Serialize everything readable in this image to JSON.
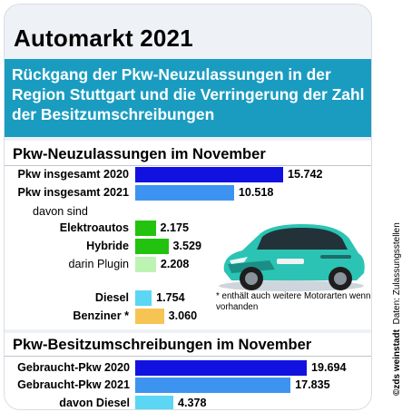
{
  "title": "Automarkt 2021",
  "subtitle": "Rückgang der Pkw-Neuzulassungen in der Region Stuttgart und die Verringerung der Zahl der Besitzumschreibungen",
  "footnote": "* enthält auch weitere Motorarten wenn vorhanden",
  "credit": "©zds weinstadt",
  "source": "Daten: Zulassungsstellen",
  "colors": {
    "dark_blue": "#1212e0",
    "mid_blue": "#3d94f0",
    "green": "#22c20f",
    "light_green": "#bdf4b4",
    "cyan": "#5bd6f5",
    "orange": "#f5c453",
    "teal": "#1a9cc1"
  },
  "chart_data": [
    {
      "type": "bar",
      "title": "Pkw-Neuzulassungen im November",
      "orientation": "horizontal",
      "rows": [
        {
          "label": "Pkw insgesamt 2020",
          "value": 15742,
          "value_label": "15.742",
          "color": "#1212e0"
        },
        {
          "label": "Pkw insgesamt 2021",
          "value": 10518,
          "value_label": "10.518",
          "color": "#3d94f0"
        },
        {
          "label": "davon sind",
          "header": true
        },
        {
          "label": "Elektroautos",
          "value": 2175,
          "value_label": "2.175",
          "color": "#22c20f"
        },
        {
          "label": "Hybride",
          "value": 3529,
          "value_label": "3.529",
          "color": "#22c20f"
        },
        {
          "label": "darin Plugin",
          "value": 2208,
          "value_label": "2.208",
          "color": "#bdf4b4",
          "plain": true
        },
        {
          "label": "Diesel",
          "value": 1754,
          "value_label": "1.754",
          "color": "#5bd6f5"
        },
        {
          "label": "Benziner *",
          "value": 3060,
          "value_label": "3.060",
          "color": "#f5c453"
        }
      ]
    },
    {
      "type": "bar",
      "title": "Pkw-Besitzumschreibungen im November",
      "orientation": "horizontal",
      "rows": [
        {
          "label": "Gebraucht-Pkw 2020",
          "value": 19694,
          "value_label": "19.694",
          "color": "#1212e0"
        },
        {
          "label": "Gebraucht-Pkw 2021",
          "value": 17835,
          "value_label": "17.835",
          "color": "#3d94f0"
        },
        {
          "label": "davon Diesel",
          "value": 4378,
          "value_label": "4.378",
          "color": "#5bd6f5"
        }
      ]
    }
  ]
}
